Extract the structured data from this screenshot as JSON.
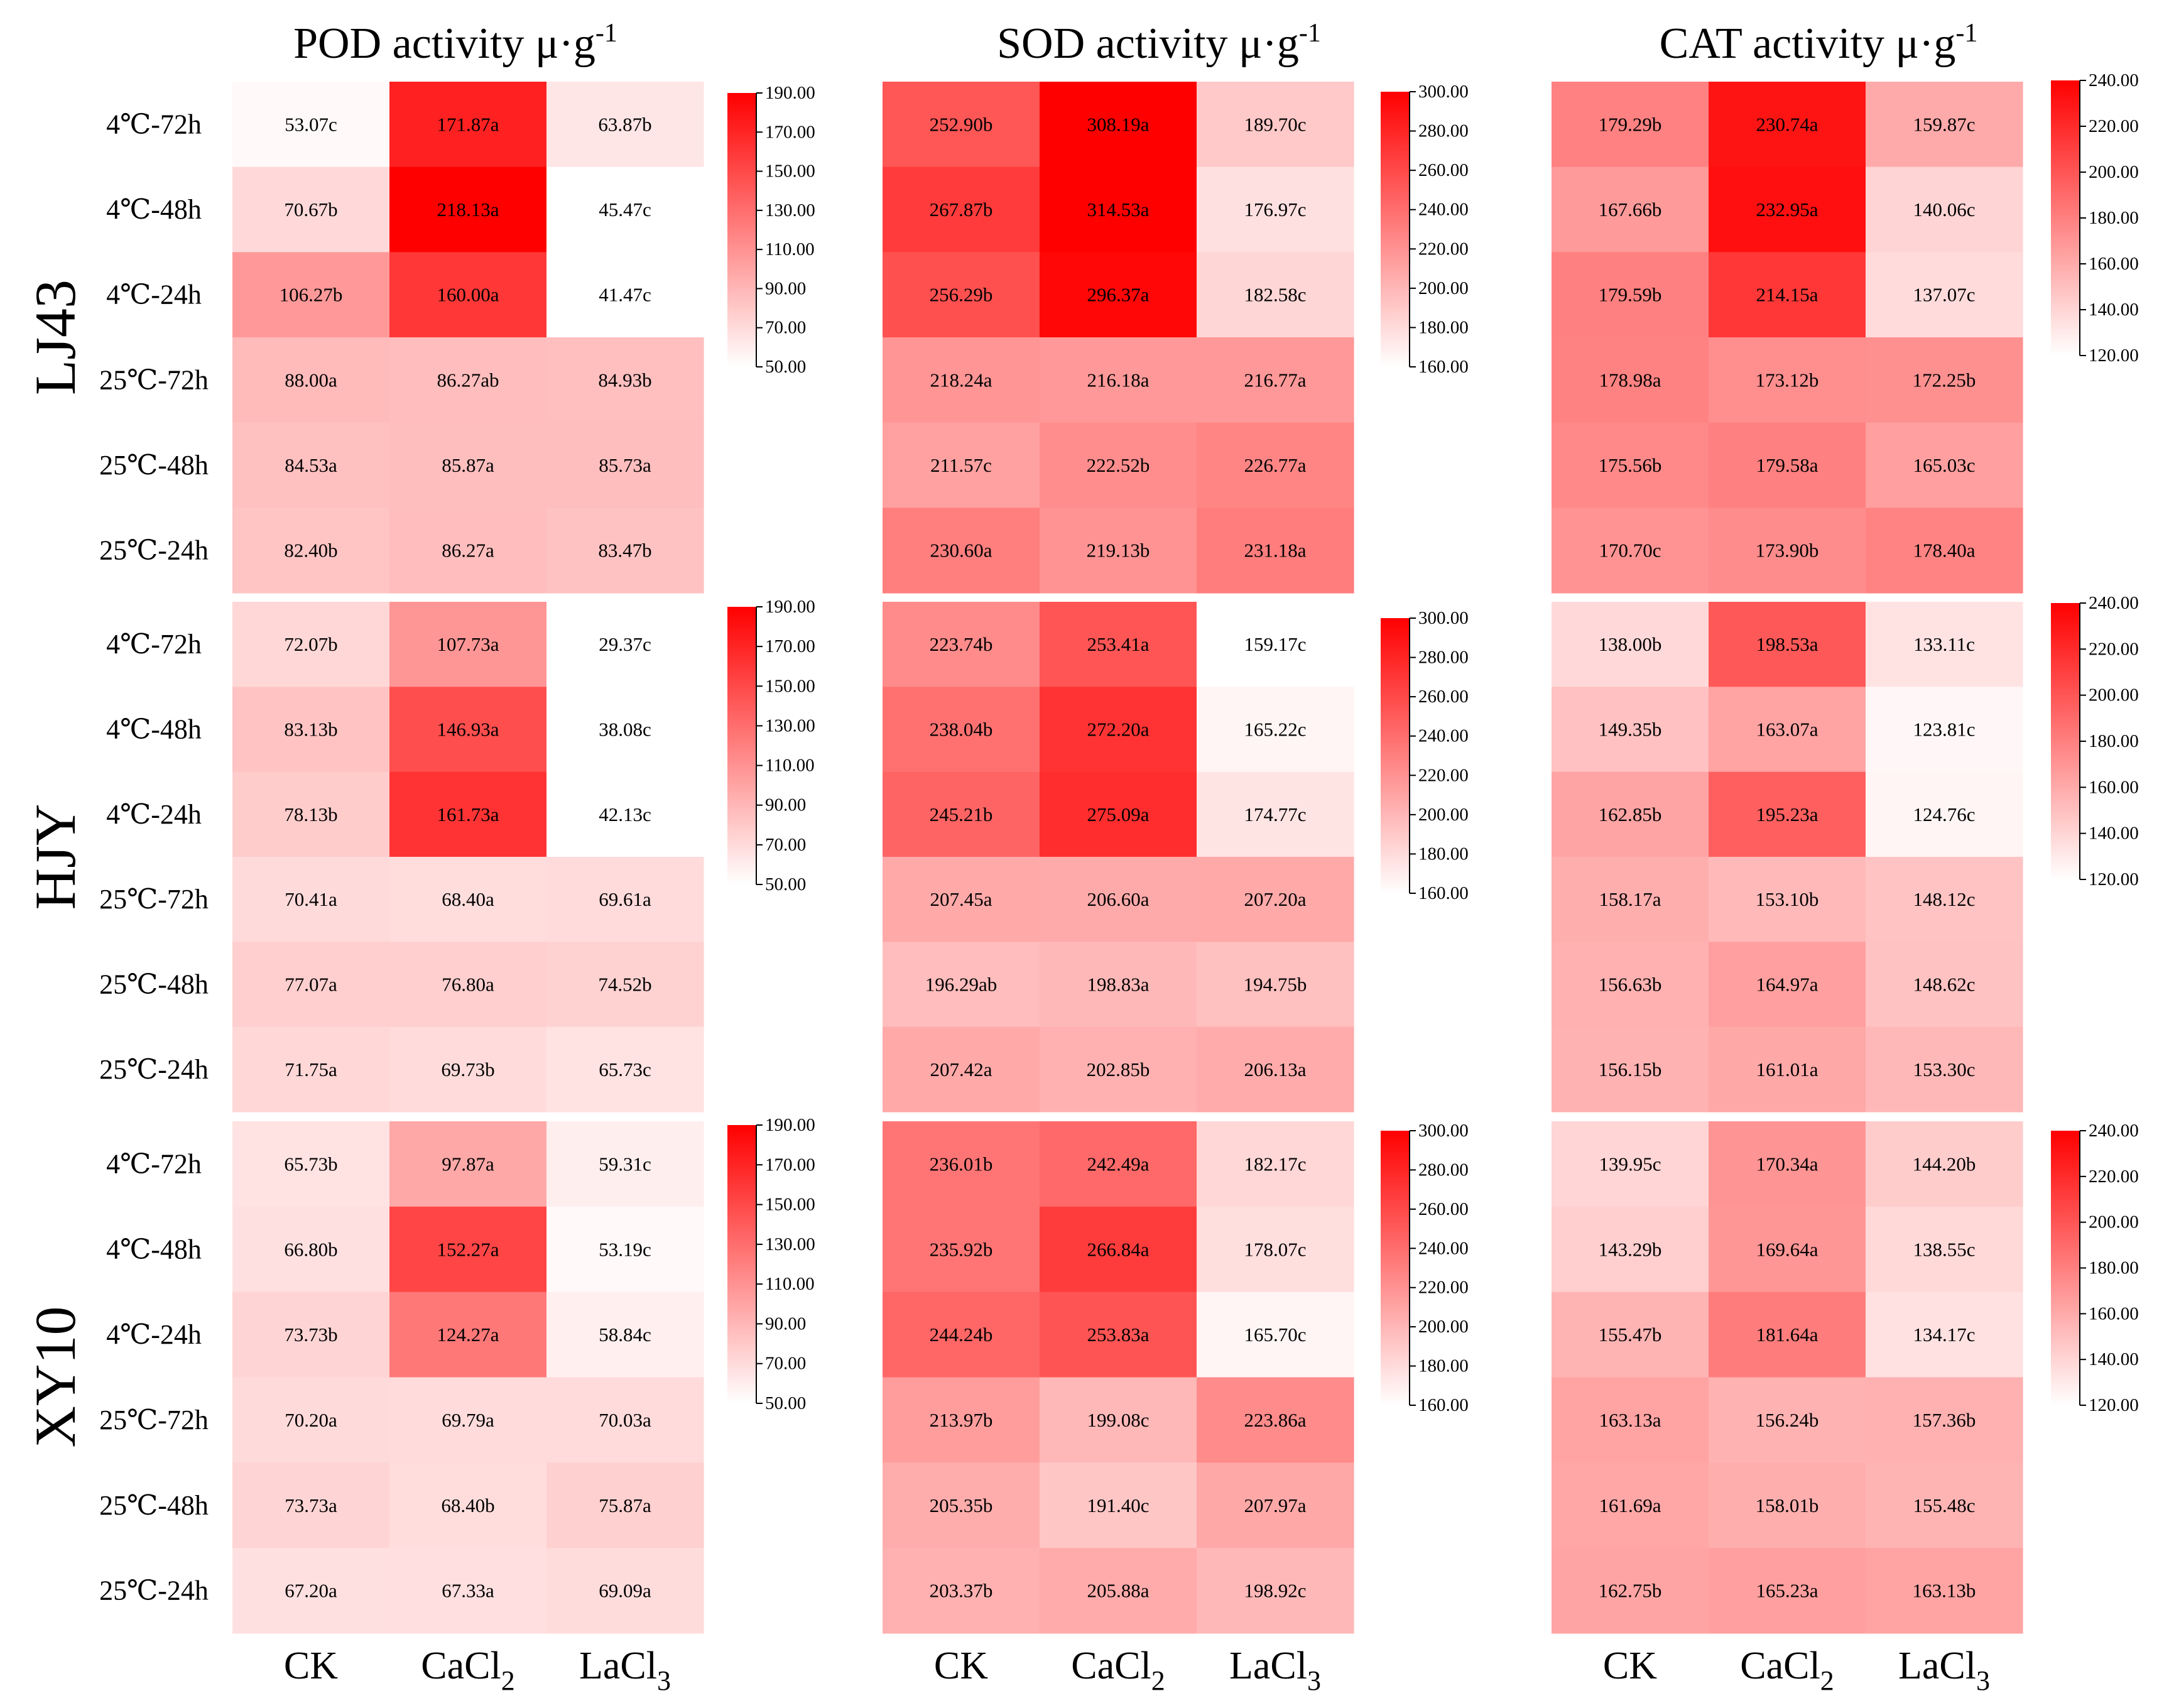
{
  "chart_data": {
    "type": "heatmap",
    "columns": [
      "CK",
      "CaCl2",
      "LaCl3"
    ],
    "column_labels": [
      {
        "base": "CK",
        "sub": ""
      },
      {
        "base": "CaCl",
        "sub": "2"
      },
      {
        "base": "LaCl",
        "sub": "3"
      }
    ],
    "row_labels": [
      "4℃-72h",
      "4℃-48h",
      "4℃-24h",
      "25℃-72h",
      "25℃-48h",
      "25℃-24h"
    ],
    "cultivars": [
      "LJ43",
      "HJY",
      "XY10"
    ],
    "colors": {
      "low": "#ffffff",
      "high": "#ff0000"
    },
    "panels": [
      {
        "title": "POD activity μ·g",
        "title_sup": "-1",
        "colorbar": {
          "min": 50,
          "max": 190,
          "ticks": [
            "190.00",
            "170.00",
            "150.00",
            "130.00",
            "110.00",
            "90.00",
            "70.00",
            "50.00"
          ]
        },
        "groups": [
          {
            "values": [
              [
                53.07,
                171.87,
                63.87
              ],
              [
                70.67,
                218.13,
                45.47
              ],
              [
                106.27,
                160.0,
                41.47
              ],
              [
                88.0,
                86.27,
                84.93
              ],
              [
                84.53,
                85.87,
                85.73
              ],
              [
                82.4,
                86.27,
                83.47
              ]
            ],
            "labels": [
              [
                "53.07c",
                "171.87a",
                "63.87b"
              ],
              [
                "70.67b",
                "218.13a",
                "45.47c"
              ],
              [
                "106.27b",
                "160.00a",
                "41.47c"
              ],
              [
                "88.00a",
                "86.27ab",
                "84.93b"
              ],
              [
                "84.53a",
                "85.87a",
                "85.73a"
              ],
              [
                "82.40b",
                "86.27a",
                "83.47b"
              ]
            ]
          },
          {
            "values": [
              [
                72.07,
                107.73,
                29.37
              ],
              [
                83.13,
                146.93,
                38.08
              ],
              [
                78.13,
                161.73,
                42.13
              ],
              [
                70.41,
                68.4,
                69.61
              ],
              [
                77.07,
                76.8,
                74.52
              ],
              [
                71.75,
                69.73,
                65.73
              ]
            ],
            "labels": [
              [
                "72.07b",
                "107.73a",
                "29.37c"
              ],
              [
                "83.13b",
                "146.93a",
                "38.08c"
              ],
              [
                "78.13b",
                "161.73a",
                "42.13c"
              ],
              [
                "70.41a",
                "68.40a",
                "69.61a"
              ],
              [
                "77.07a",
                "76.80a",
                "74.52b"
              ],
              [
                "71.75a",
                "69.73b",
                "65.73c"
              ]
            ]
          },
          {
            "values": [
              [
                65.73,
                97.87,
                59.31
              ],
              [
                66.8,
                152.27,
                53.19
              ],
              [
                73.73,
                124.27,
                58.84
              ],
              [
                70.2,
                69.79,
                70.03
              ],
              [
                73.73,
                68.4,
                75.87
              ],
              [
                67.2,
                67.33,
                69.09
              ]
            ],
            "labels": [
              [
                "65.73b",
                "97.87a",
                "59.31c"
              ],
              [
                "66.80b",
                "152.27a",
                "53.19c"
              ],
              [
                "73.73b",
                "124.27a",
                "58.84c"
              ],
              [
                "70.20a",
                "69.79a",
                "70.03a"
              ],
              [
                "73.73a",
                "68.40b",
                "75.87a"
              ],
              [
                "67.20a",
                "67.33a",
                "69.09a"
              ]
            ]
          }
        ]
      },
      {
        "title": "SOD activity μ·g",
        "title_sup": "-1",
        "colorbar": {
          "min": 160,
          "max": 300,
          "ticks": [
            "300.00",
            "280.00",
            "260.00",
            "240.00",
            "220.00",
            "200.00",
            "180.00",
            "160.00"
          ]
        },
        "groups": [
          {
            "values": [
              [
                252.9,
                308.19,
                189.7
              ],
              [
                267.87,
                314.53,
                176.97
              ],
              [
                256.29,
                296.37,
                182.58
              ],
              [
                218.24,
                216.18,
                216.77
              ],
              [
                211.57,
                222.52,
                226.77
              ],
              [
                230.6,
                219.13,
                231.18
              ]
            ],
            "labels": [
              [
                "252.90b",
                "308.19a",
                "189.70c"
              ],
              [
                "267.87b",
                "314.53a",
                "176.97c"
              ],
              [
                "256.29b",
                "296.37a",
                "182.58c"
              ],
              [
                "218.24a",
                "216.18a",
                "216.77a"
              ],
              [
                "211.57c",
                "222.52b",
                "226.77a"
              ],
              [
                "230.60a",
                "219.13b",
                "231.18a"
              ]
            ]
          },
          {
            "values": [
              [
                223.74,
                253.41,
                159.17
              ],
              [
                238.04,
                272.2,
                165.22
              ],
              [
                245.21,
                275.09,
                174.77
              ],
              [
                207.45,
                206.6,
                207.2
              ],
              [
                196.29,
                198.83,
                194.75
              ],
              [
                207.42,
                202.85,
                206.13
              ]
            ],
            "labels": [
              [
                "223.74b",
                "253.41a",
                "159.17c"
              ],
              [
                "238.04b",
                "272.20a",
                "165.22c"
              ],
              [
                "245.21b",
                "275.09a",
                "174.77c"
              ],
              [
                "207.45a",
                "206.60a",
                "207.20a"
              ],
              [
                "196.29ab",
                "198.83a",
                "194.75b"
              ],
              [
                "207.42a",
                "202.85b",
                "206.13a"
              ]
            ]
          },
          {
            "values": [
              [
                236.01,
                242.49,
                182.17
              ],
              [
                235.92,
                266.84,
                178.07
              ],
              [
                244.24,
                253.83,
                165.7
              ],
              [
                213.97,
                199.08,
                223.86
              ],
              [
                205.35,
                191.4,
                207.97
              ],
              [
                203.37,
                205.88,
                198.92
              ]
            ],
            "labels": [
              [
                "236.01b",
                "242.49a",
                "182.17c"
              ],
              [
                "235.92b",
                "266.84a",
                "178.07c"
              ],
              [
                "244.24b",
                "253.83a",
                "165.70c"
              ],
              [
                "213.97b",
                "199.08c",
                "223.86a"
              ],
              [
                "205.35b",
                "191.40c",
                "207.97a"
              ],
              [
                "203.37b",
                "205.88a",
                "198.92c"
              ]
            ]
          }
        ]
      },
      {
        "title": "CAT activity μ·g",
        "title_sup": "-1",
        "colorbar": {
          "min": 120,
          "max": 240,
          "ticks": [
            "240.00",
            "220.00",
            "200.00",
            "180.00",
            "160.00",
            "140.00",
            "120.00"
          ]
        },
        "groups": [
          {
            "values": [
              [
                179.29,
                230.74,
                159.87
              ],
              [
                167.66,
                232.95,
                140.06
              ],
              [
                179.59,
                214.15,
                137.07
              ],
              [
                178.98,
                173.12,
                172.25
              ],
              [
                175.56,
                179.58,
                165.03
              ],
              [
                170.7,
                173.9,
                178.4
              ]
            ],
            "labels": [
              [
                "179.29b",
                "230.74a",
                "159.87c"
              ],
              [
                "167.66b",
                "232.95a",
                "140.06c"
              ],
              [
                "179.59b",
                "214.15a",
                "137.07c"
              ],
              [
                "178.98a",
                "173.12b",
                "172.25b"
              ],
              [
                "175.56b",
                "179.58a",
                "165.03c"
              ],
              [
                "170.70c",
                "173.90b",
                "178.40a"
              ]
            ]
          },
          {
            "values": [
              [
                138.0,
                198.53,
                133.11
              ],
              [
                149.35,
                163.07,
                123.81
              ],
              [
                162.85,
                195.23,
                124.76
              ],
              [
                158.17,
                153.1,
                148.12
              ],
              [
                156.63,
                164.97,
                148.62
              ],
              [
                156.15,
                161.01,
                153.3
              ]
            ],
            "labels": [
              [
                "138.00b",
                "198.53a",
                "133.11c"
              ],
              [
                "149.35b",
                "163.07a",
                "123.81c"
              ],
              [
                "162.85b",
                "195.23a",
                "124.76c"
              ],
              [
                "158.17a",
                "153.10b",
                "148.12c"
              ],
              [
                "156.63b",
                "164.97a",
                "148.62c"
              ],
              [
                "156.15b",
                "161.01a",
                "153.30c"
              ]
            ]
          },
          {
            "values": [
              [
                139.95,
                170.34,
                144.2
              ],
              [
                143.29,
                169.64,
                138.55
              ],
              [
                155.47,
                181.64,
                134.17
              ],
              [
                163.13,
                156.24,
                157.36
              ],
              [
                161.69,
                158.01,
                155.48
              ],
              [
                162.75,
                165.23,
                163.13
              ]
            ],
            "labels": [
              [
                "139.95c",
                "170.34a",
                "144.20b"
              ],
              [
                "143.29b",
                "169.64a",
                "138.55c"
              ],
              [
                "155.47b",
                "181.64a",
                "134.17c"
              ],
              [
                "163.13a",
                "156.24b",
                "157.36b"
              ],
              [
                "161.69a",
                "158.01b",
                "155.48c"
              ],
              [
                "162.75b",
                "165.23a",
                "163.13b"
              ]
            ]
          }
        ]
      }
    ]
  }
}
